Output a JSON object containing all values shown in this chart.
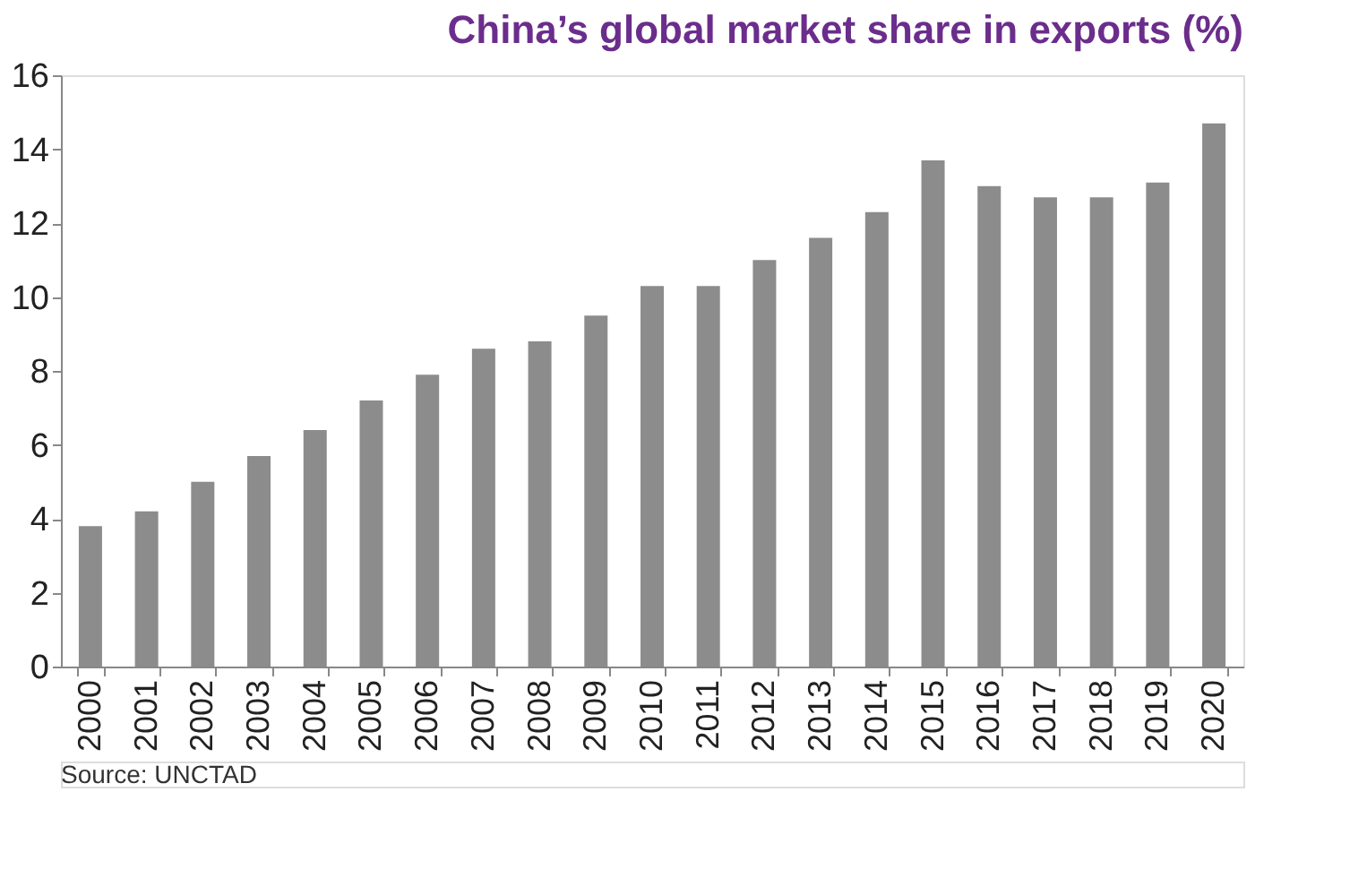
{
  "chart_data": {
    "type": "bar",
    "title": "China’s global market share in exports (%)",
    "categories": [
      "2000",
      "2001",
      "2002",
      "2003",
      "2004",
      "2005",
      "2006",
      "2007",
      "2008",
      "2009",
      "2010",
      "2011",
      "2012",
      "2013",
      "2014",
      "2015",
      "2016",
      "2017",
      "2018",
      "2019",
      "2020"
    ],
    "values": [
      3.8,
      4.2,
      5.0,
      5.7,
      6.4,
      7.2,
      7.9,
      8.6,
      8.8,
      9.5,
      10.3,
      10.3,
      11.0,
      11.6,
      12.3,
      13.7,
      13.0,
      12.7,
      12.7,
      13.1,
      14.7
    ],
    "color": "#8c8c8c",
    "ylim": [
      0,
      16
    ],
    "yticks": [
      0,
      2,
      4,
      6,
      8,
      10,
      12,
      14,
      16
    ],
    "grid": false,
    "annotations": [
      "Source: UNCTAD"
    ]
  }
}
